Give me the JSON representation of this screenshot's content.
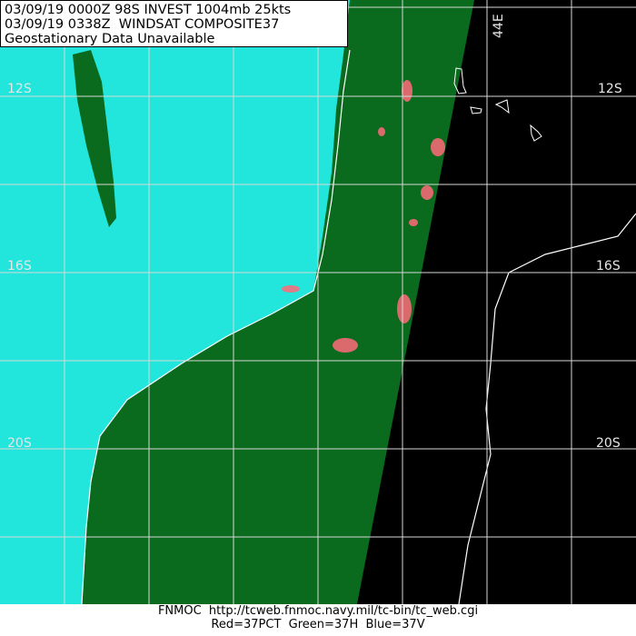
{
  "header": {
    "line1": "03/09/19 0000Z 98S INVEST 1004mb 25kts",
    "line2": "03/09/19 0338Z  WINDSAT COMPOSITE37",
    "line3": "Geostationary Data Unavailable"
  },
  "map": {
    "lat_labels": [
      "12S",
      "16S",
      "20S"
    ],
    "lon_labels": [
      "44E"
    ],
    "colors": {
      "land": "#22e6dc",
      "ocean": "#0a6a1e",
      "no_data": "#000000",
      "convection": "#ff6a7a",
      "grid": "#d8d8d8"
    }
  },
  "footer": {
    "line1": "FNMOC  http://tcweb.fnmoc.navy.mil/tc-bin/tc_web.cgi",
    "line2": "Red=37PCT  Green=37H  Blue=37V"
  }
}
